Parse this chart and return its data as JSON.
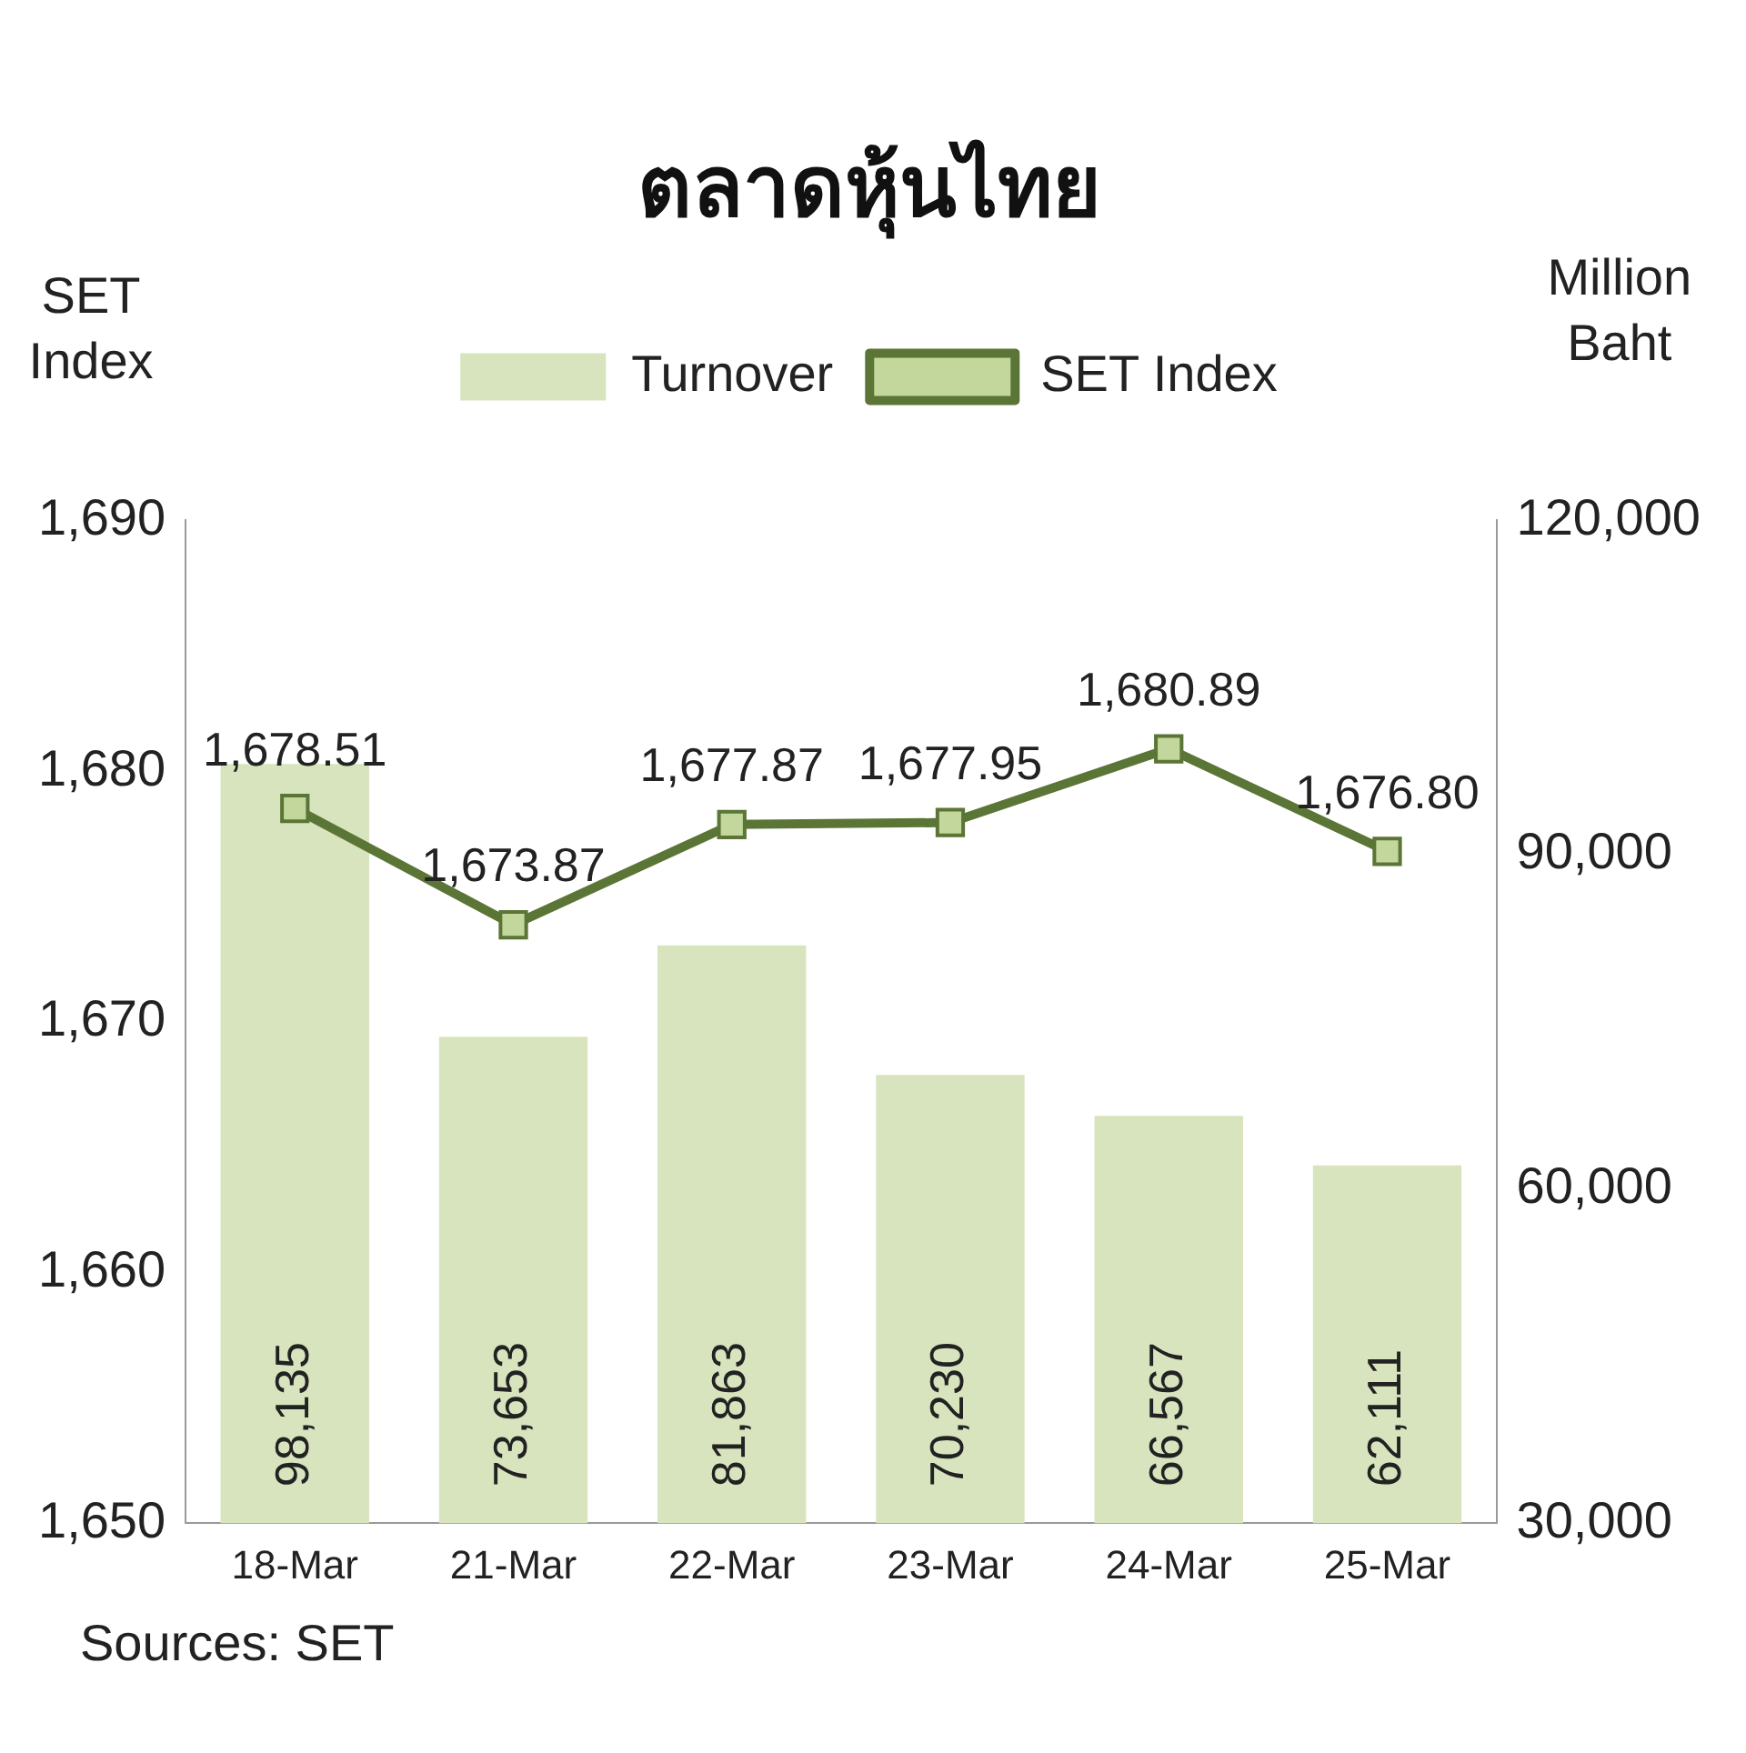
{
  "chart_data": {
    "type": "bar",
    "title": "ตลาดหุ้นไทย",
    "ylabel": "SET Index",
    "y2label": "Million Baht",
    "categories": [
      "18-Mar",
      "21-Mar",
      "22-Mar",
      "23-Mar",
      "24-Mar",
      "25-Mar"
    ],
    "series": [
      {
        "name": "Turnover",
        "axis": "y2",
        "color": "#d7e4bd",
        "values": [
          98135,
          73653,
          81863,
          70230,
          66567,
          62111
        ],
        "value_labels": [
          "98,135",
          "73,653",
          "81,863",
          "70,230",
          "66,567",
          "62,111"
        ]
      },
      {
        "name": "SET Index",
        "type": "line",
        "color": "#5a7535",
        "values": [
          1678.51,
          1673.87,
          1677.87,
          1677.95,
          1680.89,
          1676.8
        ],
        "value_labels": [
          "1,678.51",
          "1,673.87",
          "1,677.87",
          "1,677.95",
          "1,680.89",
          "1,676.80"
        ]
      }
    ],
    "ylim": [
      1650,
      1690
    ],
    "yticks": [
      {
        "value": 1650,
        "label": "1,650"
      },
      {
        "value": 1660,
        "label": "1,660"
      },
      {
        "value": 1670,
        "label": "1,670"
      },
      {
        "value": 1680,
        "label": "1,680"
      },
      {
        "value": 1690,
        "label": "1,690"
      }
    ],
    "y2lim": [
      30000,
      120000
    ],
    "y2ticks": [
      {
        "value": 30000,
        "label": "30,000"
      },
      {
        "value": 60000,
        "label": "60,000"
      },
      {
        "value": 90000,
        "label": "90,000"
      },
      {
        "value": 120000,
        "label": "120,000"
      }
    ],
    "marker": "square",
    "legend": "top",
    "grid": false,
    "annotations": [
      "Sources: SET"
    ]
  }
}
